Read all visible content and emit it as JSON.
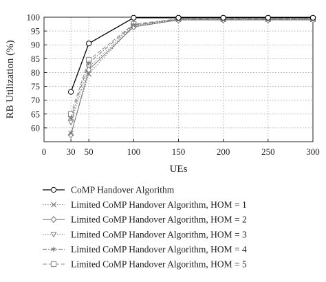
{
  "chart_data": {
    "type": "line",
    "xlabel": "UEs",
    "ylabel": "RB Utilization (%)",
    "x_ticks": [
      0,
      30,
      50,
      100,
      150,
      200,
      250,
      300
    ],
    "y_ticks": [
      60,
      65,
      70,
      75,
      80,
      85,
      90,
      95,
      100
    ],
    "xlim": [
      0,
      300
    ],
    "ylim": [
      55,
      100
    ],
    "grid": true,
    "legend_position": "bottom",
    "x": [
      30,
      50,
      100,
      150,
      200,
      250,
      300
    ],
    "series": [
      {
        "name": "CoMP Handover Algorithm",
        "marker": "circle",
        "color": "#000000",
        "dash": "solid",
        "values": [
          73,
          90.5,
          99.8,
          99.8,
          99.8,
          99.8,
          99.8
        ]
      },
      {
        "name": "Limited CoMP Handover Algorithm, HOM = 1",
        "marker": "x",
        "color": "#777777",
        "dash": "dotted",
        "values": [
          58,
          79.5,
          97,
          99.2,
          99.2,
          99.2,
          99.2
        ]
      },
      {
        "name": "Limited CoMP Handover Algorithm, HOM = 2",
        "marker": "diamond",
        "color": "#777777",
        "dash": "solid",
        "values": [
          57.5,
          81,
          96.5,
          99,
          99,
          99,
          99
        ]
      },
      {
        "name": "Limited CoMP Handover Algorithm, HOM = 3",
        "marker": "triangle-down",
        "color": "#777777",
        "dash": "dotted",
        "values": [
          62,
          82,
          96.8,
          99.1,
          99.1,
          99.1,
          99.1
        ]
      },
      {
        "name": "Limited CoMP Handover Algorithm, HOM = 4",
        "marker": "star",
        "color": "#777777",
        "dash": "dashdot",
        "values": [
          63.5,
          83.5,
          97.2,
          99.3,
          99.3,
          99.3,
          99.3
        ]
      },
      {
        "name": "Limited CoMP Handover Algorithm, HOM = 5",
        "marker": "square",
        "color": "#888888",
        "dash": "dashed",
        "values": [
          65,
          84.5,
          97.5,
          99.4,
          99.4,
          99.4,
          99.4
        ]
      }
    ]
  }
}
